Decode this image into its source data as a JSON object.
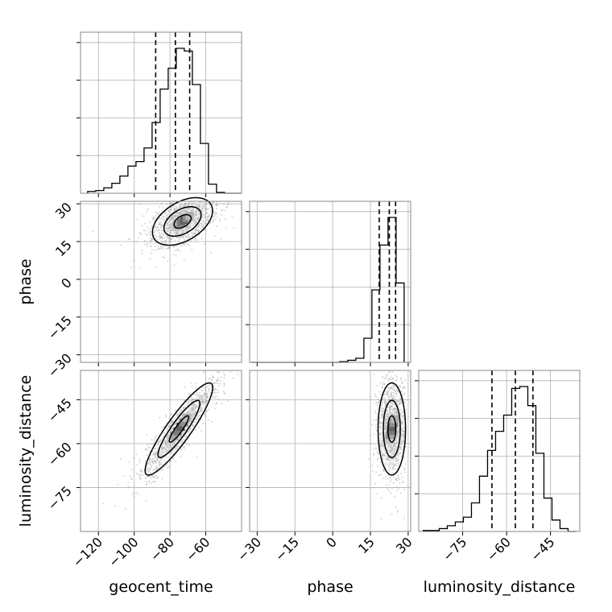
{
  "chart_data": {
    "type": "corner",
    "parameters": [
      "geocent_time",
      "phase",
      "luminosity_distance"
    ],
    "axis_labels": {
      "x": [
        "geocent_time",
        "phase",
        "luminosity_distance"
      ],
      "y": [
        "phase",
        "luminosity_distance"
      ]
    },
    "ranges": {
      "geocent_time": [
        -130,
        -40
      ],
      "phase": [
        -33,
        31
      ],
      "luminosity_distance": [
        -90,
        -35
      ]
    },
    "ticks": {
      "geocent_time": [
        -120,
        -100,
        -80,
        -60
      ],
      "phase": [
        -30,
        -15,
        0,
        15,
        30
      ],
      "luminosity_distance": [
        -75,
        -60,
        -45
      ]
    },
    "tick_labels": {
      "geocent_time": [
        "−120",
        "−100",
        "−80",
        "−60"
      ],
      "phase": [
        "−30",
        "−15",
        "0",
        "15",
        "30"
      ],
      "luminosity_distance": [
        "−75",
        "−60",
        "−45"
      ]
    },
    "quantiles": {
      "geocent_time": [
        -88,
        -77,
        -69
      ],
      "phase": [
        18.5,
        22.5,
        25
      ],
      "luminosity_distance": [
        -65,
        -57,
        -51
      ]
    },
    "histograms": {
      "geocent_time": {
        "bin_edges": [
          -126,
          -121.5,
          -117,
          -112.5,
          -108,
          -103.5,
          -99,
          -94.5,
          -90,
          -85.5,
          -81,
          -76.5,
          -72,
          -67.5,
          -63,
          -58.5,
          -54,
          -49.5,
          -45,
          -40.5
        ],
        "counts": [
          2,
          3,
          6,
          11,
          19,
          30,
          35,
          50,
          78,
          115,
          138,
          160,
          157,
          120,
          55,
          10,
          1,
          0,
          0
        ]
      },
      "phase": {
        "bin_edges": [
          -32.4,
          -29.2,
          -26,
          -22.8,
          -19.6,
          -16.4,
          -13.2,
          -10,
          -6.8,
          -3.6,
          -0.4,
          2.8,
          6,
          9.2,
          12.4,
          15.6,
          18.8,
          22,
          25.2,
          28.4
        ],
        "counts": [
          0,
          0,
          0,
          0,
          0,
          0,
          0,
          0,
          0,
          0,
          0,
          1,
          3,
          6,
          35,
          105,
          170,
          210,
          115
        ]
      },
      "luminosity_distance": {
        "bin_edges": [
          -88.5,
          -85.75,
          -83,
          -80.25,
          -77.5,
          -74.75,
          -72,
          -69.25,
          -66.5,
          -63.75,
          -61,
          -58.25,
          -55.5,
          -52.75,
          -50,
          -47.25,
          -44.5,
          -41.75,
          -39,
          -36.25
        ],
        "counts": [
          1,
          1,
          3,
          6,
          10,
          15,
          30,
          58,
          85,
          105,
          122,
          150,
          152,
          132,
          82,
          35,
          12,
          3,
          0
        ]
      }
    },
    "scatter_centers": {
      "phase_vs_geocent_time": [
        -73,
        23
      ],
      "luminosity_distance_vs_geocent_time": [
        -75,
        -55
      ],
      "luminosity_distance_vs_phase": [
        23.5,
        -55
      ]
    },
    "grid": true,
    "colors": {
      "line": "#000000",
      "points": "#8a8a8a",
      "grid": "#b0b0b0",
      "frame": "#888888"
    }
  }
}
